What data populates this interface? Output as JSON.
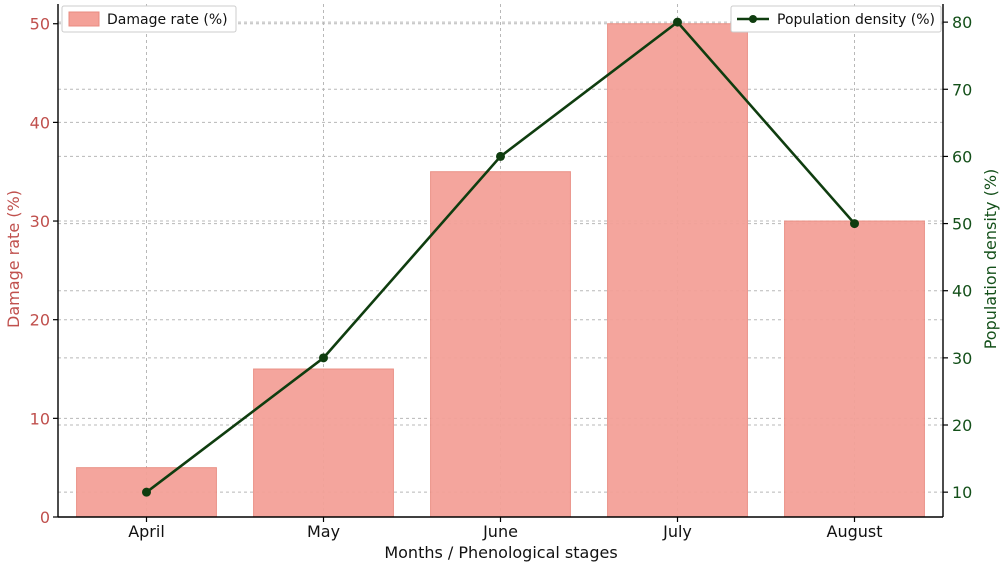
{
  "chart_data": {
    "type": "bar",
    "xlabel": "Months / Phenological stages",
    "categories": [
      "April",
      "May",
      "June",
      "July",
      "August"
    ],
    "series": [
      {
        "name": "Damage rate (%)",
        "type": "bar",
        "axis": "left",
        "color": "#f4a198",
        "values": [
          5,
          15,
          35,
          50,
          30
        ]
      },
      {
        "name": "Population density (%)",
        "type": "line",
        "axis": "right",
        "color": "#0f3d0f",
        "values": [
          10,
          30,
          60,
          80,
          50
        ]
      }
    ],
    "y_left": {
      "label": "Damage rate (%)",
      "ylim": [
        0,
        52
      ],
      "ticks": [
        0,
        10,
        20,
        30,
        40,
        50
      ],
      "color": "#c0504d"
    },
    "y_right": {
      "label": "Population density (%)",
      "ylim": [
        6.3,
        82.7
      ],
      "ticks": [
        10,
        20,
        30,
        40,
        50,
        60,
        70,
        80
      ],
      "color": "#14501a"
    },
    "grid": true,
    "legends": {
      "bar": "top-left",
      "line": "top-right"
    }
  }
}
